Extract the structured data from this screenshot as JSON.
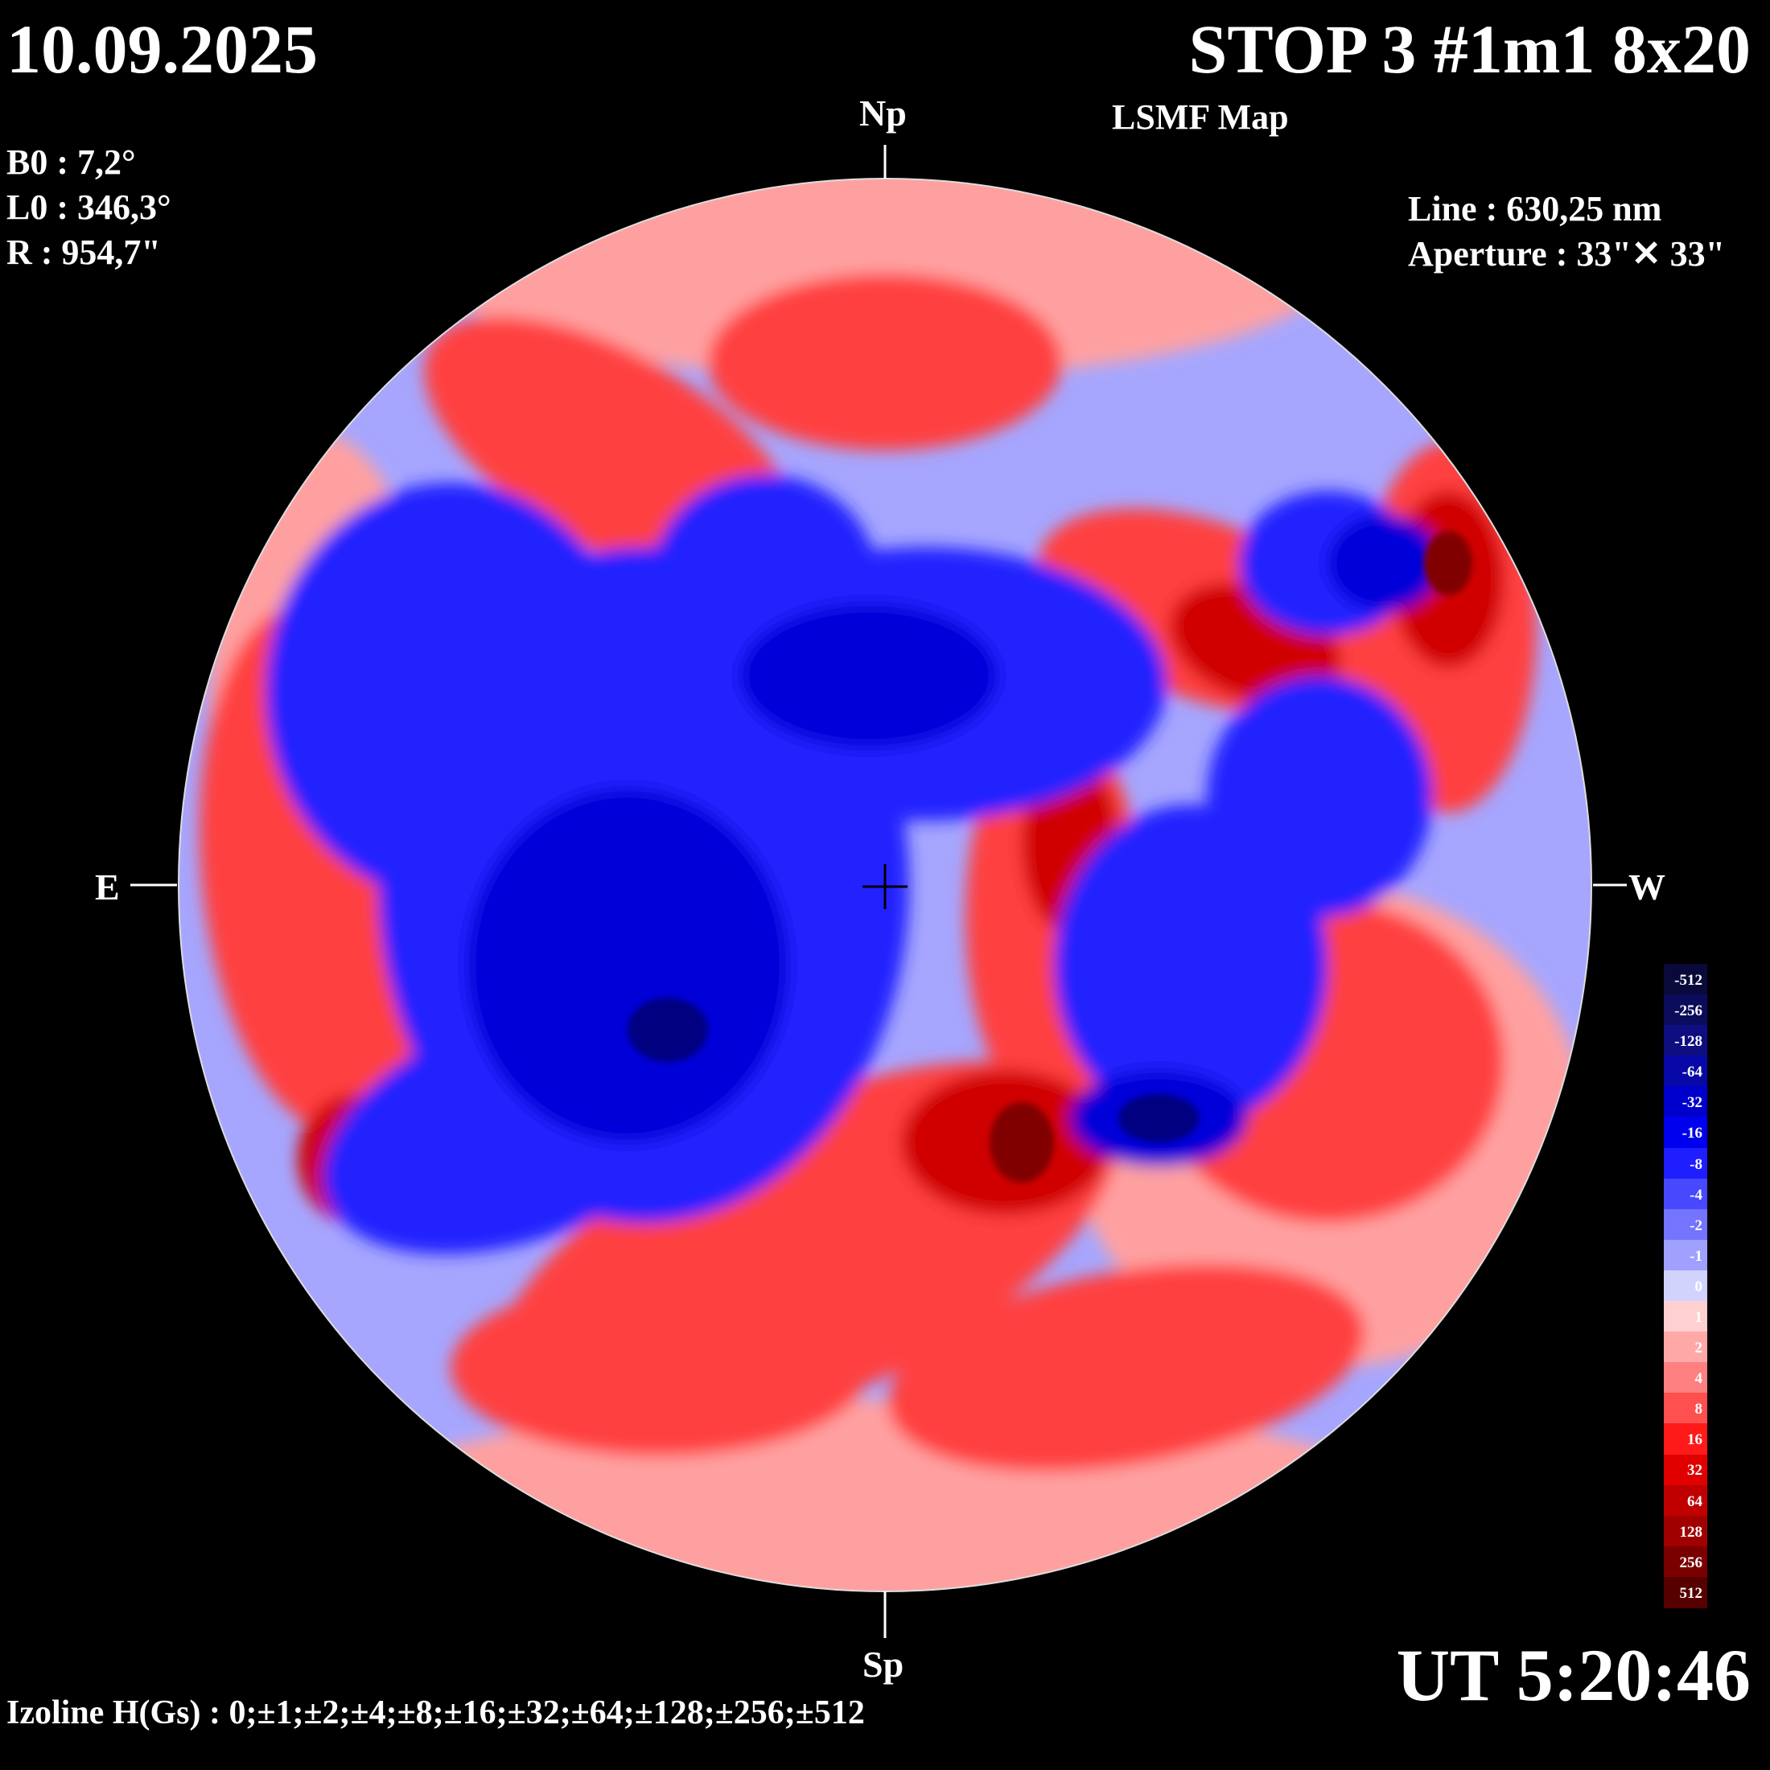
{
  "header": {
    "date": "10.09.2025",
    "title": "STOP 3 #1m1 8x20",
    "subtitle": "LSMF  Map"
  },
  "ephemeris": {
    "b0": "B0 : 7,2°",
    "l0": "L0 : 346,3°",
    "r": "R  : 954,7\""
  },
  "instrument": {
    "line": "Line :  630,25 nm",
    "aperture": "Aperture : 33\"✕ 33\""
  },
  "orientation": {
    "north": "Np",
    "south": "Sp",
    "east": "E",
    "west": "W"
  },
  "time": "UT 5:20:46",
  "izoline": "Izoline H(Gs) : 0;±1;±2;±4;±8;±16;±32;±64;±128;±256;±512",
  "colorbar": {
    "labels": [
      "-512",
      "-256",
      "-128",
      "-64",
      "-32",
      "-16",
      "-8",
      "-4",
      "-2",
      "-1",
      "0",
      "1",
      "2",
      "4",
      "8",
      "16",
      "32",
      "64",
      "128",
      "256",
      "512"
    ],
    "colors": [
      "#0a0a3a",
      "#0c0c5c",
      "#0e0e80",
      "#0808a8",
      "#0000cc",
      "#0000ee",
      "#1e1eff",
      "#4848ff",
      "#7474ff",
      "#a0a0ff",
      "#d2d2ff",
      "#ffd0d0",
      "#ffa8a8",
      "#ff8080",
      "#ff5050",
      "#ff1a1a",
      "#e00000",
      "#c00000",
      "#a00000",
      "#7a0000",
      "#560000"
    ]
  },
  "map": {
    "positive_color": "#e00000",
    "negative_color": "#0000ee",
    "contour_color": "#ffffff"
  }
}
